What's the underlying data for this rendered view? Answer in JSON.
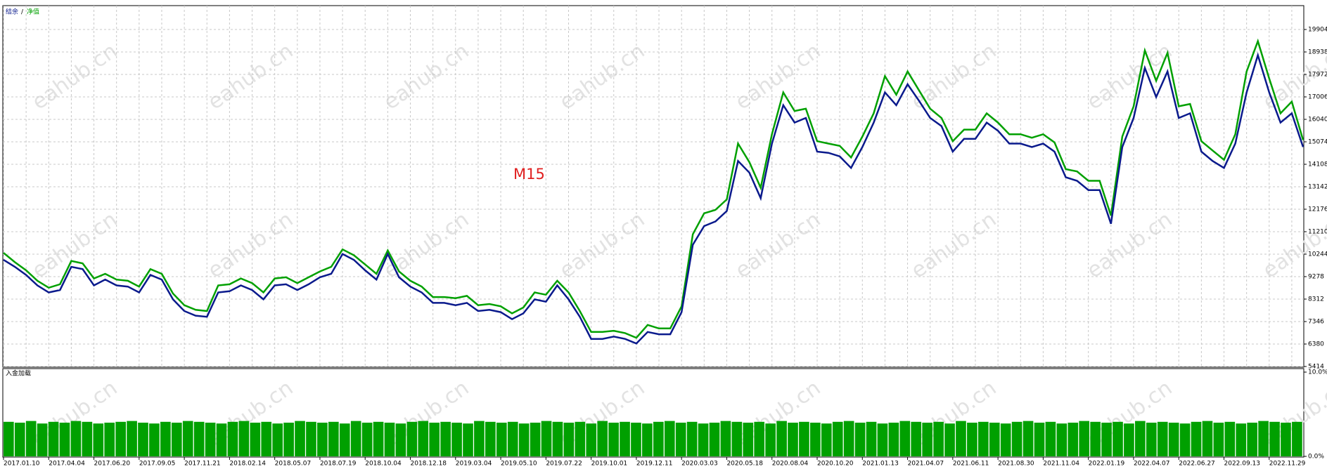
{
  "watermark": "eahub.cn",
  "chart_data": [
    {
      "type": "line",
      "annotation": "M15",
      "legend_separator": "/",
      "categories": [
        "2017.01.10",
        null,
        null,
        null,
        "2017.04.04",
        null,
        null,
        null,
        "2017.06.20",
        null,
        null,
        null,
        "2017.09.05",
        null,
        null,
        null,
        "2017.11.21",
        null,
        null,
        null,
        "2018.02.14",
        null,
        null,
        null,
        "2018.05.07",
        null,
        null,
        null,
        "2018.07.19",
        null,
        null,
        null,
        "2018.10.04",
        null,
        null,
        null,
        "2018.12.18",
        null,
        null,
        null,
        "2019.03.04",
        null,
        null,
        null,
        "2019.05.10",
        null,
        null,
        null,
        "2019.07.22",
        null,
        null,
        null,
        "2019.10.01",
        null,
        null,
        null,
        "2019.12.11",
        null,
        null,
        null,
        "2020.03.03",
        null,
        null,
        null,
        "2020.05.18",
        null,
        null,
        null,
        "2020.08.04",
        null,
        null,
        null,
        "2020.10.20",
        null,
        null,
        null,
        "2021.01.13",
        null,
        null,
        null,
        "2021.04.07",
        null,
        null,
        null,
        "2021.06.11",
        null,
        null,
        null,
        "2021.08.30",
        null,
        null,
        null,
        "2021.11.04",
        null,
        null,
        null,
        "2022.01.19",
        null,
        null,
        null,
        "2022.04.07",
        null,
        null,
        null,
        "2022.06.27",
        null,
        null,
        null,
        "2022.09.13",
        null,
        null,
        null,
        "2022.11.29",
        null,
        null,
        null
      ],
      "series": [
        {
          "name": "结余",
          "color": "#0a1a8c",
          "values": [
            10000,
            9700,
            9350,
            8900,
            8600,
            8700,
            9700,
            9600,
            8900,
            9150,
            8900,
            8850,
            8600,
            9350,
            9150,
            8300,
            7800,
            7600,
            7550,
            8600,
            8650,
            8900,
            8700,
            8300,
            8900,
            8950,
            8700,
            8950,
            9250,
            9400,
            10250,
            10000,
            9550,
            9150,
            10250,
            9250,
            8850,
            8600,
            8150,
            8150,
            8050,
            8150,
            7800,
            7850,
            7750,
            7450,
            7700,
            8300,
            8200,
            8900,
            8300,
            7550,
            6600,
            6600,
            6700,
            6600,
            6400,
            6900,
            6800,
            6800,
            7750,
            10650,
            11450,
            11650,
            12100,
            14250,
            13750,
            12650,
            15000,
            16650,
            15900,
            16100,
            14650,
            14600,
            14450,
            13950,
            14850,
            15900,
            17200,
            16650,
            17550,
            16850,
            16100,
            15750,
            14650,
            15200,
            15200,
            15900,
            15550,
            15000,
            15000,
            14850,
            15000,
            14650,
            13550,
            13400,
            13000,
            13000,
            11550,
            14850,
            16100,
            18250,
            17000,
            18100,
            16100,
            16300,
            14650,
            14250,
            13950,
            15000,
            17200,
            18800,
            17200,
            15900,
            16300,
            14850
          ]
        },
        {
          "name": "净值",
          "color": "#00a000",
          "values": [
            10300,
            9900,
            9550,
            9100,
            8800,
            8950,
            9950,
            9850,
            9200,
            9400,
            9150,
            9100,
            8850,
            9600,
            9400,
            8550,
            8050,
            7850,
            7800,
            8900,
            8950,
            9200,
            9000,
            8600,
            9200,
            9250,
            9000,
            9250,
            9500,
            9700,
            10450,
            10200,
            9800,
            9400,
            10400,
            9500,
            9100,
            8850,
            8400,
            8400,
            8350,
            8450,
            8050,
            8100,
            8000,
            7700,
            7950,
            8600,
            8500,
            9100,
            8600,
            7800,
            6900,
            6900,
            6950,
            6850,
            6650,
            7200,
            7050,
            7050,
            8000,
            11100,
            12000,
            12150,
            12600,
            15000,
            14200,
            13100,
            15400,
            17200,
            16400,
            16500,
            15100,
            15000,
            14900,
            14400,
            15300,
            16300,
            17900,
            17100,
            18100,
            17300,
            16500,
            16100,
            15100,
            15600,
            15600,
            16300,
            15900,
            15400,
            15400,
            15250,
            15400,
            15050,
            13900,
            13800,
            13400,
            13400,
            11900,
            15300,
            16600,
            19000,
            17700,
            18900,
            16600,
            16700,
            15100,
            14700,
            14300,
            15400,
            18100,
            19400,
            17800,
            16300,
            16800,
            15150
          ]
        }
      ],
      "ylim": [
        5414,
        19904
      ],
      "yticks": [
        5414,
        6380,
        7346,
        8312,
        9278,
        10244,
        11210,
        12176,
        13142,
        14108,
        15074,
        16040,
        17006,
        17972,
        18938,
        19904
      ],
      "grid": true
    },
    {
      "type": "bar",
      "title": "入金加载",
      "color": "#00a000",
      "values": [
        4.1,
        4.0,
        4.2,
        3.9,
        4.1,
        4.0,
        4.2,
        4.1,
        3.9,
        4.0,
        4.1,
        4.2,
        4.0,
        3.9,
        4.1,
        4.0,
        4.2,
        4.1,
        4.0,
        3.9,
        4.1,
        4.2,
        4.0,
        4.1,
        3.9,
        4.0,
        4.2,
        4.1,
        4.0,
        4.1,
        3.9,
        4.2,
        4.0,
        4.1,
        4.0,
        3.9,
        4.1,
        4.2,
        4.0,
        4.1,
        4.0,
        3.9,
        4.2,
        4.1,
        4.0,
        4.1,
        3.9,
        4.0,
        4.2,
        4.1,
        4.0,
        4.1,
        3.9,
        4.2,
        4.0,
        4.1,
        4.0,
        3.9,
        4.1,
        4.2,
        4.0,
        4.1,
        3.9,
        4.0,
        4.2,
        4.1,
        4.0,
        4.1,
        3.9,
        4.2,
        4.0,
        4.1,
        4.0,
        3.9,
        4.1,
        4.2,
        4.0,
        4.1,
        3.9,
        4.0,
        4.2,
        4.1,
        4.0,
        4.1,
        3.9,
        4.2,
        4.0,
        4.1,
        4.0,
        3.9,
        4.1,
        4.2,
        4.0,
        4.1,
        3.9,
        4.0,
        4.2,
        4.1,
        4.0,
        4.1,
        3.9,
        4.2,
        4.0,
        4.1,
        4.0,
        3.9,
        4.1,
        4.2,
        4.0,
        4.1,
        3.9,
        4.0,
        4.2,
        4.1,
        4.0,
        4.1
      ],
      "ylim": [
        0,
        10
      ],
      "yticks": [
        {
          "value": 0,
          "label": "0.0%"
        },
        {
          "value": 10,
          "label": "10.0%"
        }
      ],
      "grid": false
    }
  ]
}
